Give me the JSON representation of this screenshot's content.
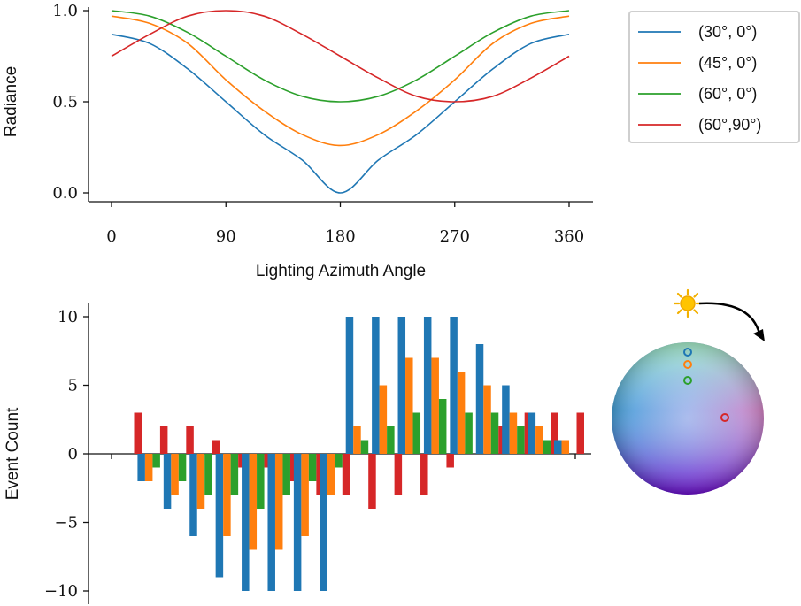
{
  "chart_data": [
    {
      "type": "line",
      "xlabel": "Lighting Azimuth Angle",
      "ylabel": "Radiance",
      "xlim": [
        0,
        360
      ],
      "ylim": [
        0,
        1
      ],
      "xticks": [
        "0",
        "90",
        "180",
        "270",
        "360"
      ],
      "yticks": [
        "0.0",
        "0.5",
        "1.0"
      ],
      "grid": false,
      "legend_position": "right",
      "series": [
        {
          "name": "(30°, 0°)",
          "color": "#1f77b4",
          "x": [
            0,
            30,
            60,
            90,
            120,
            150,
            180,
            210,
            240,
            270,
            300,
            330,
            360
          ],
          "y": [
            0.87,
            0.82,
            0.68,
            0.5,
            0.32,
            0.18,
            0.0,
            0.18,
            0.32,
            0.5,
            0.68,
            0.82,
            0.87
          ]
        },
        {
          "name": "(45°, 0°)",
          "color": "#ff7f0e",
          "x": [
            0,
            30,
            60,
            90,
            120,
            150,
            180,
            210,
            240,
            270,
            300,
            330,
            360
          ],
          "y": [
            0.97,
            0.93,
            0.82,
            0.62,
            0.45,
            0.32,
            0.26,
            0.32,
            0.45,
            0.62,
            0.82,
            0.93,
            0.97
          ]
        },
        {
          "name": "(60°, 0°)",
          "color": "#2ca02c",
          "x": [
            0,
            30,
            60,
            90,
            120,
            150,
            180,
            210,
            240,
            270,
            300,
            330,
            360
          ],
          "y": [
            1.0,
            0.97,
            0.88,
            0.75,
            0.62,
            0.53,
            0.5,
            0.53,
            0.62,
            0.75,
            0.88,
            0.97,
            1.0
          ]
        },
        {
          "name": "(60°,90°)",
          "color": "#d62728",
          "x": [
            0,
            30,
            60,
            90,
            120,
            150,
            180,
            210,
            240,
            270,
            300,
            330,
            360
          ],
          "y": [
            0.75,
            0.87,
            0.97,
            1.0,
            0.97,
            0.87,
            0.75,
            0.63,
            0.53,
            0.5,
            0.53,
            0.63,
            0.75
          ]
        }
      ]
    },
    {
      "type": "bar",
      "xlabel": "",
      "ylabel": "Event Count",
      "ylim": [
        -11,
        11
      ],
      "yticks": [
        "−10",
        "−5",
        "0",
        "5",
        "10"
      ],
      "ytick_values": [
        -10,
        -5,
        0,
        5,
        10
      ],
      "grid": false,
      "series_colors": [
        "#1f77b4",
        "#ff7f0e",
        "#2ca02c",
        "#d62728"
      ],
      "series": [
        {
          "values": [
            0,
            -2,
            -4,
            -6,
            -9,
            -10,
            -10,
            -10,
            -10,
            10,
            10,
            10,
            10,
            10,
            8,
            5,
            3,
            1
          ]
        },
        {
          "values": [
            0,
            -2,
            -3,
            -4,
            -6,
            -7,
            -7,
            -6,
            -3,
            2,
            5,
            7,
            7,
            6,
            5,
            3,
            2,
            1
          ]
        },
        {
          "values": [
            0,
            -1,
            -2,
            -3,
            -3,
            -4,
            -3,
            -2,
            -1,
            1,
            2,
            3,
            4,
            3,
            3,
            2,
            1,
            0
          ]
        },
        {
          "values": [
            3,
            2,
            2,
            1,
            -1,
            -1,
            -2,
            -3,
            -3,
            -4,
            -3,
            -3,
            -1,
            0,
            2,
            3,
            3,
            3
          ]
        }
      ]
    }
  ],
  "inset": {
    "sun_icon": "sun-icon",
    "arrow_icon": "curved-arrow-icon",
    "markers": [
      {
        "name": "(30°, 0°)",
        "color": "#1f77b4"
      },
      {
        "name": "(45°, 0°)",
        "color": "#ff7f0e"
      },
      {
        "name": "(60°, 0°)",
        "color": "#2ca02c"
      },
      {
        "name": "(60°,90°)",
        "color": "#d62728"
      }
    ]
  }
}
